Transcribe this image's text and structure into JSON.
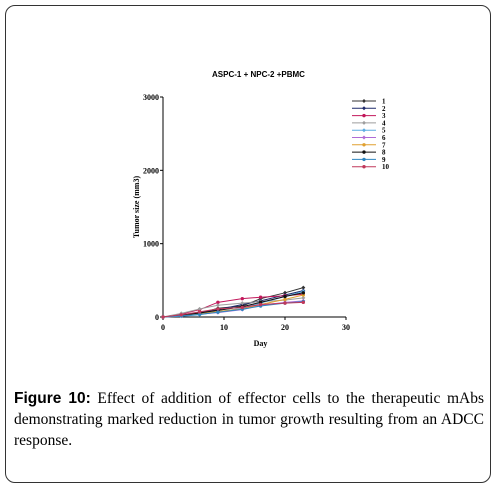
{
  "caption": {
    "label": "Figure 10:",
    "text": " Effect of addition of effector cells to the therapeutic mAbs demonstrating marked reduction in tumor growth resulting from an ADCC response."
  },
  "chart_data": {
    "type": "line",
    "title": "ASPC-1 +  NPC-2  +PBMC",
    "xlabel": "Day",
    "ylabel": "Tumor size (mm3)",
    "xlim": [
      0,
      30
    ],
    "ylim": [
      0,
      3000
    ],
    "xticks": [
      0,
      10,
      20,
      30
    ],
    "yticks": [
      0,
      1000,
      2000,
      3000
    ],
    "x": [
      0,
      3,
      6,
      9,
      13,
      16,
      20,
      23
    ],
    "legend_position": "right",
    "series": [
      {
        "name": "1",
        "color": "#333333",
        "marker": "diamond",
        "values": [
          0,
          20,
          50,
          120,
          150,
          250,
          330,
          400
        ]
      },
      {
        "name": "2",
        "color": "#1f2a6b",
        "marker": "diamond",
        "values": [
          0,
          30,
          60,
          100,
          170,
          220,
          300,
          360
        ]
      },
      {
        "name": "3",
        "color": "#c2185b",
        "marker": "circle",
        "values": [
          0,
          40,
          100,
          200,
          250,
          270,
          290,
          310
        ]
      },
      {
        "name": "4",
        "color": "#9e9e9e",
        "marker": "diamond",
        "values": [
          0,
          50,
          110,
          160,
          190,
          210,
          230,
          260
        ]
      },
      {
        "name": "5",
        "color": "#5dade2",
        "marker": "diamond",
        "values": [
          0,
          10,
          30,
          70,
          120,
          190,
          280,
          350
        ]
      },
      {
        "name": "6",
        "color": "#b06bd6",
        "marker": "diamond",
        "values": [
          0,
          15,
          40,
          60,
          100,
          160,
          200,
          220
        ]
      },
      {
        "name": "7",
        "color": "#e0a030",
        "marker": "circle",
        "values": [
          0,
          20,
          45,
          75,
          110,
          170,
          240,
          300
        ]
      },
      {
        "name": "8",
        "color": "#111111",
        "marker": "circle",
        "values": [
          0,
          25,
          55,
          90,
          140,
          200,
          280,
          330
        ]
      },
      {
        "name": "9",
        "color": "#2e86c1",
        "marker": "circle",
        "values": [
          0,
          15,
          35,
          65,
          105,
          150,
          190,
          210
        ]
      },
      {
        "name": "10",
        "color": "#c0395b",
        "marker": "circle",
        "values": [
          0,
          30,
          70,
          110,
          130,
          170,
          190,
          200
        ]
      }
    ]
  }
}
